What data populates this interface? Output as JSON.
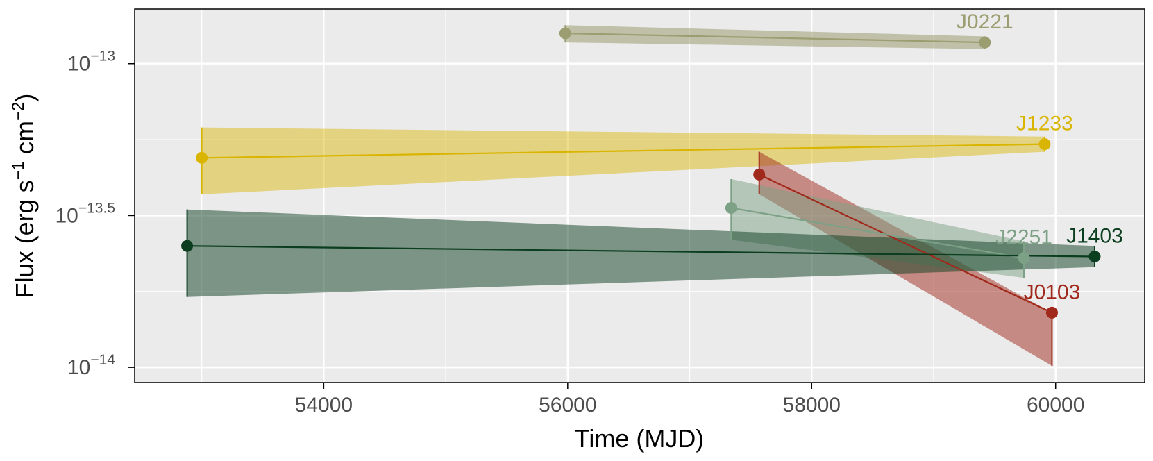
{
  "chart_data": {
    "type": "line",
    "title": "",
    "xlabel": "Time (MJD)",
    "ylabel": {
      "prefix": "Flux (erg s",
      "exp1": "−1",
      "middle": " cm",
      "exp2": "−2",
      "suffix": ")"
    },
    "x_scale": "linear",
    "y_scale": "log10",
    "xlim": [
      52450,
      60730
    ],
    "ylim_log10": [
      -14.05,
      -12.82
    ],
    "x_ticks": [
      {
        "value": 54000,
        "label": "54000"
      },
      {
        "value": 56000,
        "label": "56000"
      },
      {
        "value": 58000,
        "label": "58000"
      },
      {
        "value": 60000,
        "label": "60000"
      }
    ],
    "x_minor_ticks": [
      53000,
      55000,
      57000,
      59000
    ],
    "y_ticks": [
      {
        "log10": -13.0,
        "base": "10",
        "exp": "−13"
      },
      {
        "log10": -13.5,
        "base": "10",
        "exp": "−13.5"
      },
      {
        "log10": -14.0,
        "base": "10",
        "exp": "−14"
      }
    ],
    "y_minor_ticks_log10": [
      -13.25,
      -13.75
    ],
    "grid": true,
    "background": "#ebebeb",
    "series": [
      {
        "name": "J0221",
        "color": "#9d9d72",
        "band_alpha": 0.55,
        "points": [
          {
            "x": 55980,
            "y_log10": -12.9,
            "lo_log10": -12.93,
            "hi_log10": -12.873
          },
          {
            "x": 59420,
            "y_log10": -12.93,
            "lo_log10": -12.952,
            "hi_log10": -12.91
          }
        ]
      },
      {
        "name": "J1233",
        "color": "#d9b500",
        "band_alpha": 0.45,
        "points": [
          {
            "x": 53000,
            "y_log10": -13.31,
            "lo_log10": -13.43,
            "hi_log10": -13.21
          },
          {
            "x": 59910,
            "y_log10": -13.265,
            "lo_log10": -13.29,
            "hi_log10": -13.24
          }
        ]
      },
      {
        "name": "J0103",
        "color": "#a0291b",
        "band_alpha": 0.5,
        "points": [
          {
            "x": 57570,
            "y_log10": -13.365,
            "lo_log10": -13.43,
            "hi_log10": -13.29
          },
          {
            "x": 59970,
            "y_log10": -13.82,
            "lo_log10": -13.995,
            "hi_log10": -13.82
          }
        ]
      },
      {
        "name": "J2251",
        "color": "#7da186",
        "band_alpha": 0.5,
        "points": [
          {
            "x": 57340,
            "y_log10": -13.475,
            "lo_log10": -13.58,
            "hi_log10": -13.38
          },
          {
            "x": 59740,
            "y_log10": -13.64,
            "lo_log10": -13.705,
            "hi_log10": -13.585
          }
        ]
      },
      {
        "name": "J1403",
        "color": "#0b3d1f",
        "band_alpha": 0.5,
        "points": [
          {
            "x": 52880,
            "y_log10": -13.6,
            "lo_log10": -13.768,
            "hi_log10": -13.48
          },
          {
            "x": 60320,
            "y_log10": -13.635,
            "lo_log10": -13.67,
            "hi_log10": -13.6
          }
        ]
      }
    ]
  }
}
